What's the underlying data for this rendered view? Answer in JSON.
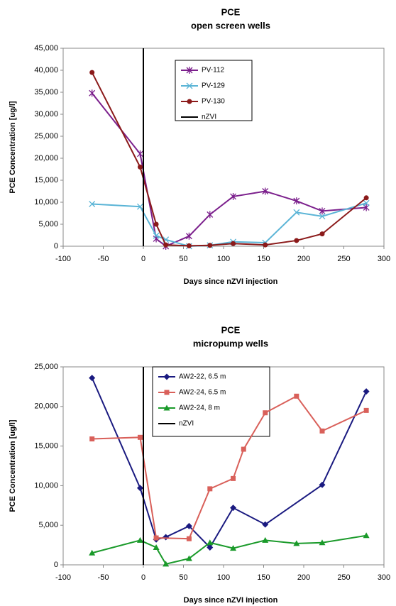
{
  "chart_data": [
    {
      "type": "line",
      "title": "PCE",
      "subtitle": "open screen wells",
      "x_label": "Days since nZVI injection",
      "y_label": "PCE Concentration  [ug/l]",
      "xlim": [
        -100,
        300
      ],
      "xticks": [
        -100,
        -50,
        0,
        50,
        100,
        150,
        200,
        250,
        300
      ],
      "ylim": [
        0,
        45000
      ],
      "yticks": [
        0,
        {
          "value": 5000,
          "label": "5,000"
        },
        {
          "value": 10000,
          "label": "10,000"
        },
        {
          "value": 15000,
          "label": "15,000"
        },
        {
          "value": 20000,
          "label": "20,000"
        },
        {
          "value": 25000,
          "label": "25,000"
        },
        {
          "value": 30000,
          "label": "30,000"
        },
        {
          "value": 35000,
          "label": "35,000"
        },
        {
          "value": 40000,
          "label": "40,000"
        },
        {
          "value": 45000,
          "label": "45,000"
        }
      ],
      "series": [
        {
          "name": "PV-112",
          "color": "#7b1f8c",
          "marker": "star",
          "x": [
            -64,
            -4,
            16,
            28,
            57,
            83,
            112,
            152,
            191,
            223,
            278
          ],
          "values": [
            34800,
            21000,
            1700,
            0,
            2300,
            7200,
            11300,
            12500,
            10300,
            8000,
            8800
          ]
        },
        {
          "name": "PV-129",
          "color": "#5ab4d6",
          "marker": "cross",
          "x": [
            -64,
            -4,
            16,
            28,
            57,
            83,
            112,
            152,
            191,
            223,
            278
          ],
          "values": [
            9600,
            9000,
            2400,
            1500,
            0,
            200,
            1000,
            800,
            7700,
            6800,
            9800
          ]
        },
        {
          "name": "PV-130",
          "color": "#8b1a1a",
          "marker": "circle",
          "x": [
            -64,
            -4,
            16,
            28,
            57,
            83,
            112,
            152,
            191,
            223,
            278
          ],
          "values": [
            39500,
            18000,
            5000,
            300,
            100,
            200,
            600,
            300,
            1300,
            2800,
            11000
          ]
        },
        {
          "name": "nZVI",
          "color": "#000000",
          "marker": "vline",
          "x": [
            0
          ]
        }
      ]
    },
    {
      "type": "line",
      "title": "PCE",
      "subtitle": "micropump wells",
      "x_label": "Days since nZVI injection",
      "y_label": "PCE Concentration  [ug/l]",
      "xlim": [
        -100,
        300
      ],
      "xticks": [
        -100,
        -50,
        0,
        50,
        100,
        150,
        200,
        250,
        300
      ],
      "ylim": [
        0,
        25000
      ],
      "yticks": [
        0,
        {
          "value": 5000,
          "label": "5,000"
        },
        {
          "value": 10000,
          "label": "10,000"
        },
        {
          "value": 15000,
          "label": "15,000"
        },
        {
          "value": 20000,
          "label": "20,000"
        },
        {
          "value": 25000,
          "label": "25,000"
        }
      ],
      "series": [
        {
          "name": "AW2-22, 6.5 m",
          "color": "#1a1a80",
          "marker": "diamond",
          "x": [
            -64,
            -4,
            16,
            28,
            57,
            83,
            112,
            152,
            223,
            278
          ],
          "values": [
            23600,
            9700,
            3200,
            3500,
            4900,
            2200,
            7200,
            5100,
            10100,
            21900
          ]
        },
        {
          "name": "AW2-24, 6.5 m",
          "color": "#d9605a",
          "marker": "square",
          "x": [
            -64,
            -4,
            16,
            57,
            83,
            112,
            125,
            152,
            191,
            223,
            278
          ],
          "values": [
            15900,
            16100,
            3400,
            3300,
            9600,
            10900,
            14600,
            19200,
            21300,
            16900,
            19500
          ]
        },
        {
          "name": "AW2-24, 8 m",
          "color": "#1a9a2a",
          "marker": "triangle",
          "x": [
            -64,
            -4,
            16,
            28,
            57,
            83,
            112,
            152,
            191,
            223,
            278
          ],
          "values": [
            1500,
            3100,
            2200,
            100,
            800,
            2800,
            2100,
            3100,
            2700,
            2800,
            3700
          ]
        },
        {
          "name": "nZVI",
          "color": "#000000",
          "marker": "vline",
          "x": [
            0
          ]
        }
      ]
    }
  ]
}
